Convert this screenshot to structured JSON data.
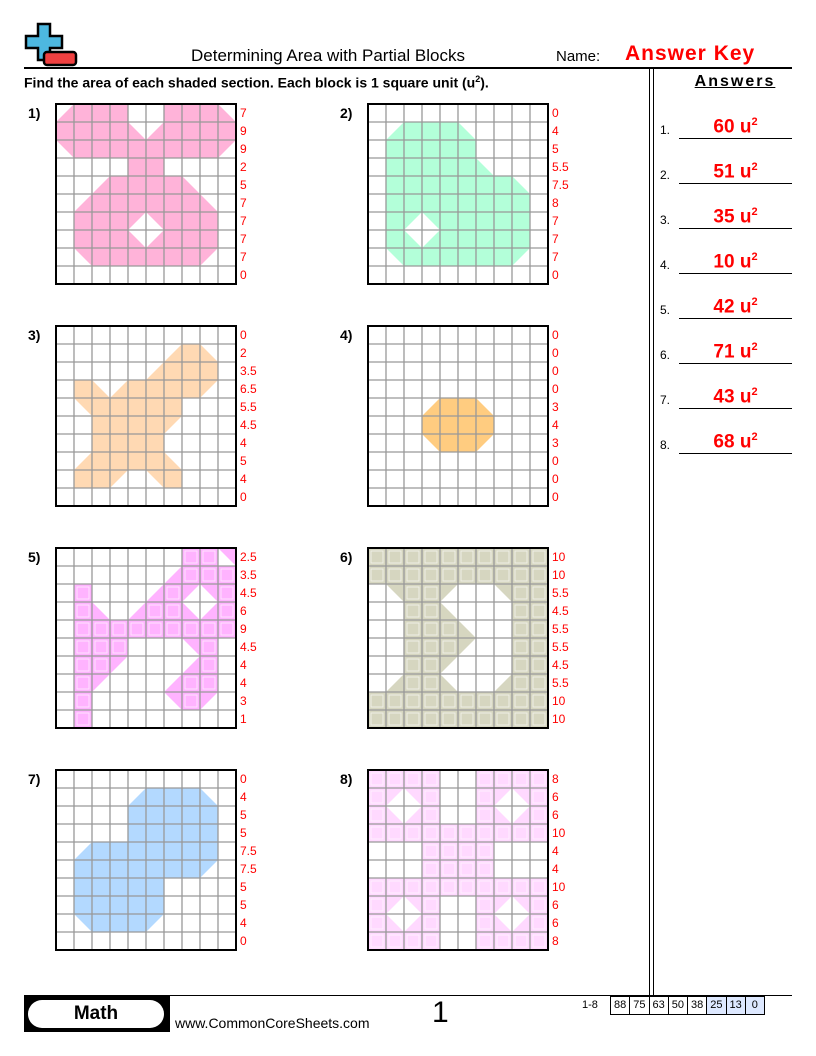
{
  "header": {
    "title": "Determining Area with Partial Blocks",
    "name_label": "Name:",
    "name_value": "Answer Key",
    "logo": "plus-minus-logo"
  },
  "instructions": {
    "text": "Find the area of each shaded section. Each block is 1 square unit (u",
    "sup": "2",
    "end": ")."
  },
  "problems": [
    {
      "label": "1)",
      "color": "#ffb3d9",
      "row_counts": [
        "7",
        "9",
        "9",
        "2",
        "5",
        "7",
        "7",
        "7",
        "7",
        "0"
      ]
    },
    {
      "label": "2)",
      "color": "#b3ffd9",
      "row_counts": [
        "0",
        "4",
        "5",
        "5.5",
        "7.5",
        "8",
        "7",
        "7",
        "7",
        "0"
      ]
    },
    {
      "label": "3)",
      "color": "#ffd9b3",
      "row_counts": [
        "0",
        "2",
        "3.5",
        "6.5",
        "5.5",
        "4.5",
        "4",
        "5",
        "4",
        "0"
      ]
    },
    {
      "label": "4)",
      "color": "#ffcc80",
      "row_counts": [
        "0",
        "0",
        "0",
        "0",
        "3",
        "4",
        "3",
        "0",
        "0",
        "0"
      ]
    },
    {
      "label": "5)",
      "color": "#ffb3ff",
      "row_counts": [
        "2.5",
        "3.5",
        "4.5",
        "6",
        "9",
        "4.5",
        "4",
        "4",
        "3",
        "1"
      ]
    },
    {
      "label": "6)",
      "color": "#d6d6c0",
      "row_counts": [
        "10",
        "10",
        "5.5",
        "4.5",
        "5.5",
        "5.5",
        "4.5",
        "5.5",
        "10",
        "10"
      ]
    },
    {
      "label": "7)",
      "color": "#b3d9ff",
      "row_counts": [
        "0",
        "4",
        "5",
        "5",
        "7.5",
        "7.5",
        "5",
        "5",
        "4",
        "0"
      ]
    },
    {
      "label": "8)",
      "color": "#ffd9ff",
      "row_counts": [
        "8",
        "6",
        "6",
        "10",
        "4",
        "4",
        "10",
        "6",
        "6",
        "8"
      ]
    }
  ],
  "answers": {
    "heading": "Answers",
    "unit": "u",
    "unit_sup": "2",
    "items": [
      {
        "num": "1.",
        "value": "60"
      },
      {
        "num": "2.",
        "value": "51"
      },
      {
        "num": "3.",
        "value": "35"
      },
      {
        "num": "4.",
        "value": "10"
      },
      {
        "num": "5.",
        "value": "42"
      },
      {
        "num": "6.",
        "value": "71"
      },
      {
        "num": "7.",
        "value": "43"
      },
      {
        "num": "8.",
        "value": "68"
      }
    ]
  },
  "footer": {
    "subject": "Math",
    "url": "www.CommonCoreSheets.com",
    "page": "1",
    "score_range": "1-8",
    "scores": [
      "88",
      "75",
      "63",
      "50",
      "38",
      "25",
      "13",
      "0"
    ],
    "highlight_color": "#dde8ff"
  }
}
